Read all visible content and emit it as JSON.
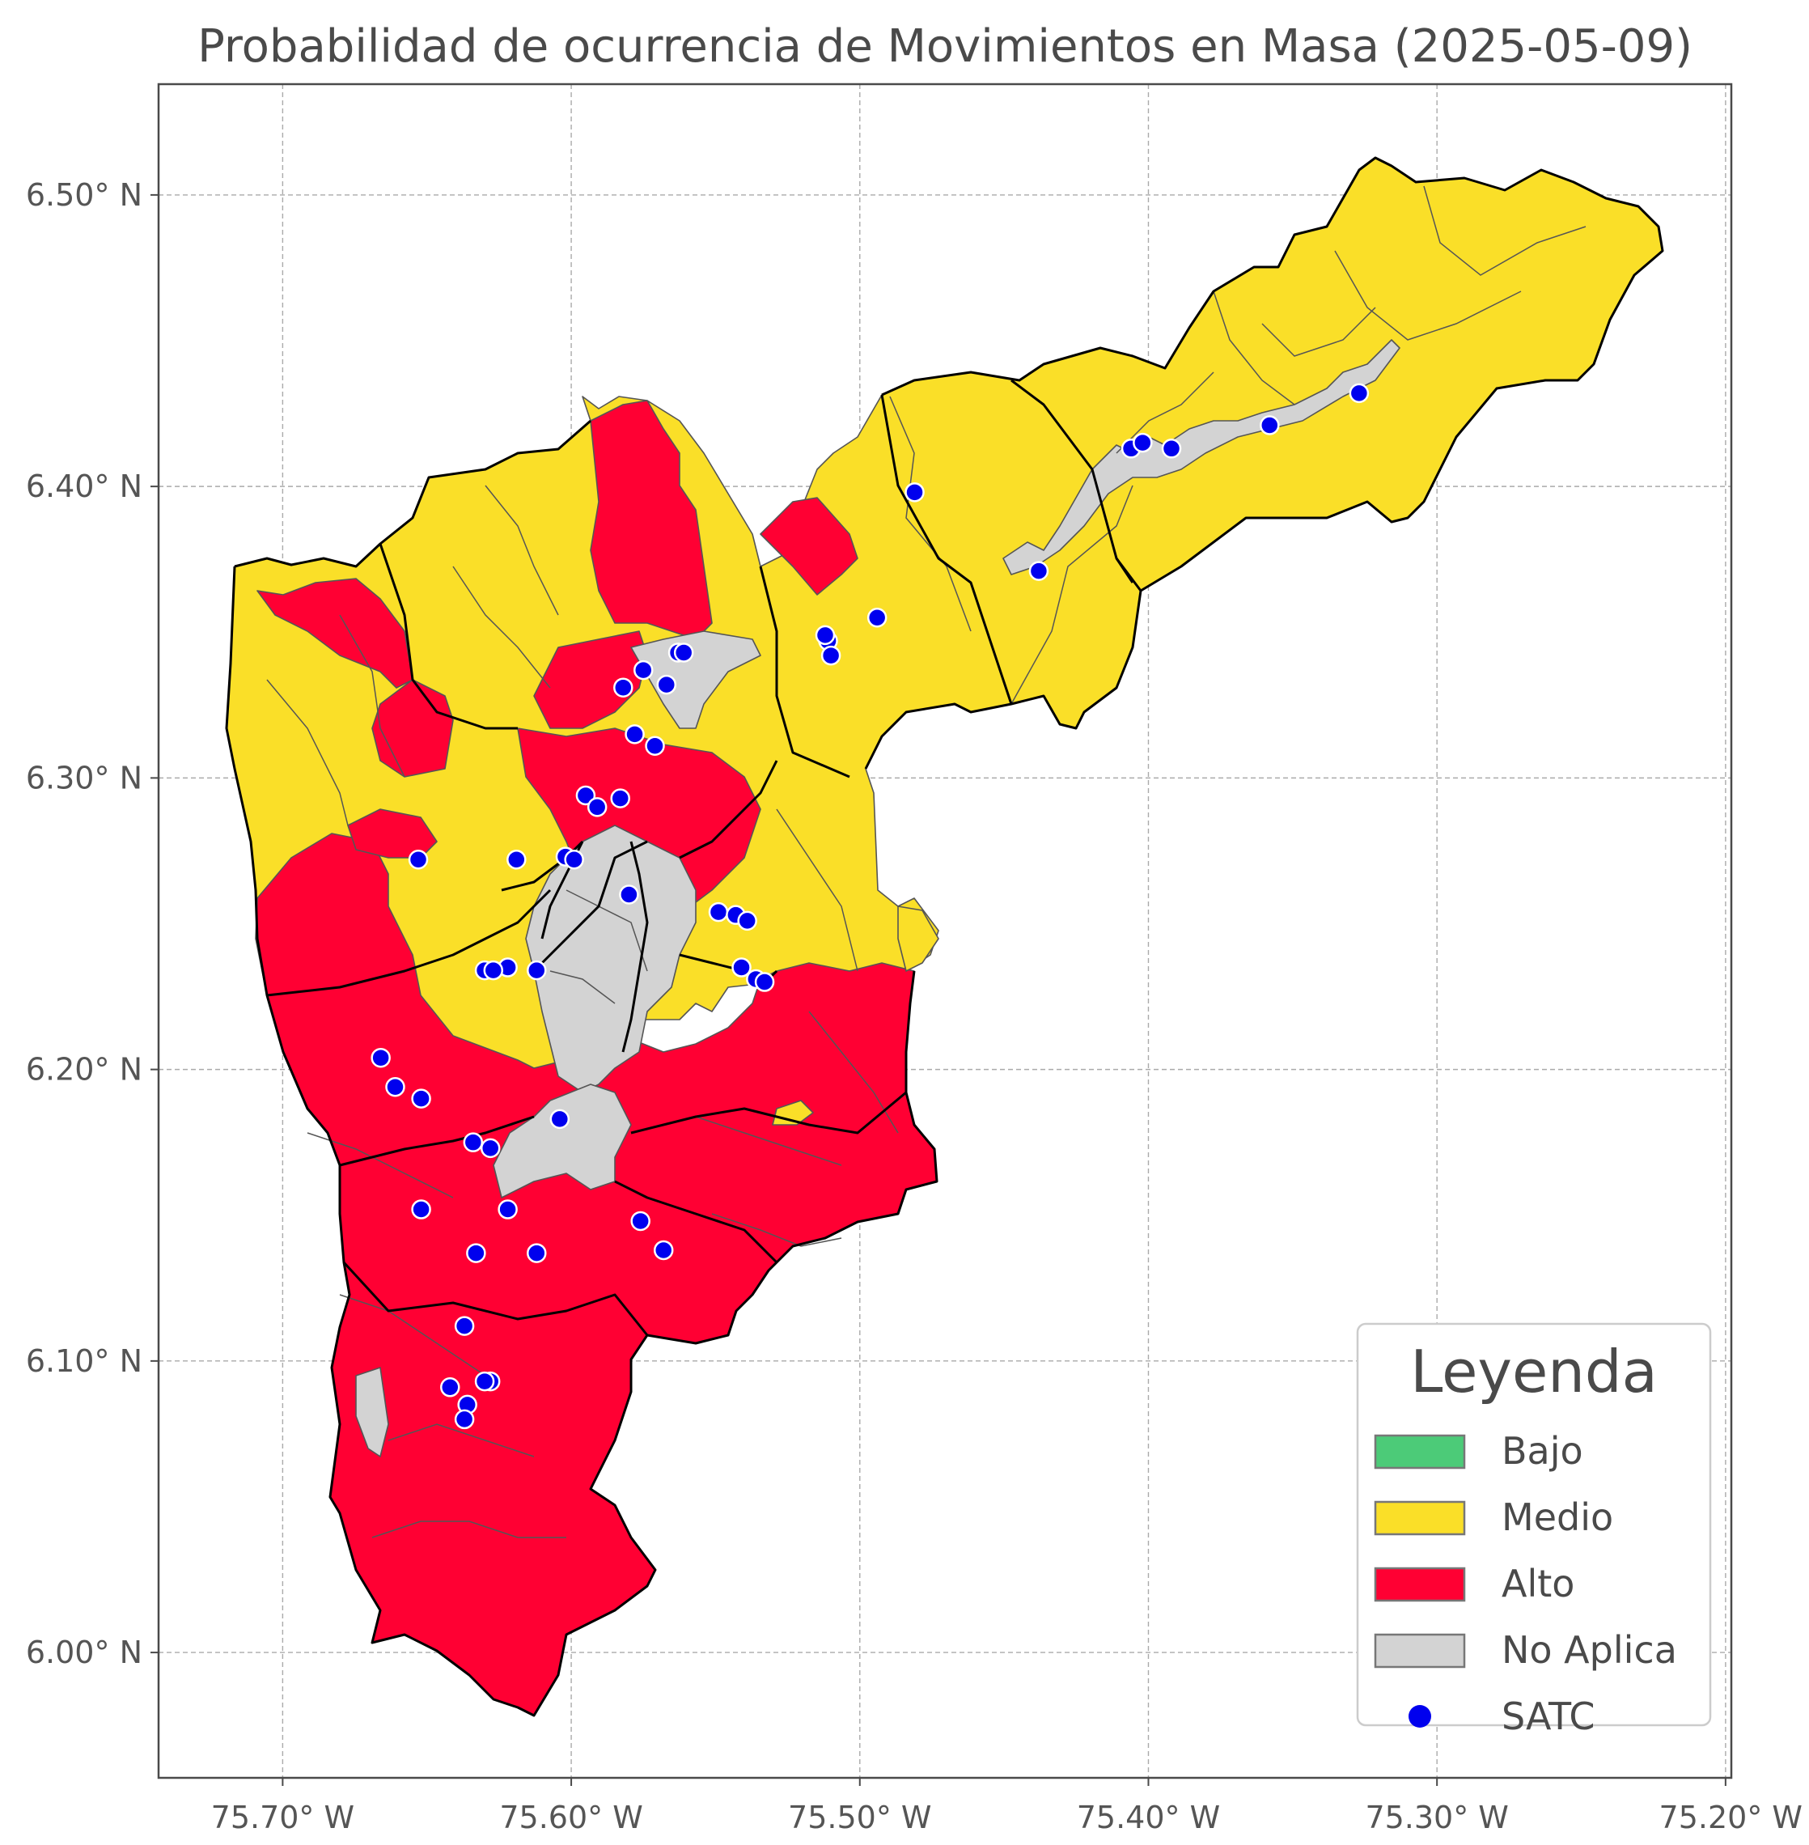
{
  "title": "Probabilidad de ocurrencia de Movimientos en Masa (2025-05-09)",
  "axes": {
    "x_ticks": [
      {
        "value": -75.7,
        "label": "75.70° W"
      },
      {
        "value": -75.6,
        "label": "75.60° W"
      },
      {
        "value": -75.5,
        "label": "75.50° W"
      },
      {
        "value": -75.4,
        "label": "75.40° W"
      },
      {
        "value": -75.3,
        "label": "75.30° W"
      },
      {
        "value": -75.2,
        "label": "75.20° W"
      }
    ],
    "y_ticks": [
      {
        "value": 6.0,
        "label": "6.00° N"
      },
      {
        "value": 6.1,
        "label": "6.10° N"
      },
      {
        "value": 6.2,
        "label": "6.20° N"
      },
      {
        "value": 6.3,
        "label": "6.30° N"
      },
      {
        "value": 6.4,
        "label": "6.40° N"
      },
      {
        "value": 6.5,
        "label": "6.50° N"
      }
    ],
    "xlim": [
      -75.743,
      -75.198
    ],
    "ylim": [
      5.957,
      6.538
    ],
    "grid": true
  },
  "legend": {
    "title": "Leyenda",
    "position": "bottom-right",
    "items": [
      {
        "label": "Bajo",
        "color": "#4ccb78",
        "kind": "patch"
      },
      {
        "label": "Medio",
        "color": "#fadf28",
        "kind": "patch"
      },
      {
        "label": "Alto",
        "color": "#ff0033",
        "kind": "patch"
      },
      {
        "label": "No Aplica",
        "color": "#d3d3d3",
        "kind": "patch"
      },
      {
        "label": "SATC",
        "color": "#0000ee",
        "kind": "marker"
      }
    ]
  },
  "colors": {
    "bajo": "#4ccb78",
    "medio": "#fadf28",
    "alto": "#ff0033",
    "no_aplica": "#d3d3d3",
    "satc": "#0000ee"
  },
  "chart_data": {
    "type": "map",
    "categories": [
      "Bajo",
      "Medio",
      "Alto",
      "No Aplica"
    ],
    "satc_stations": [
      [
        -75.481,
        6.398
      ],
      [
        -75.406,
        6.413
      ],
      [
        -75.402,
        6.415
      ],
      [
        -75.392,
        6.413
      ],
      [
        -75.358,
        6.421
      ],
      [
        -75.327,
        6.432
      ],
      [
        -75.438,
        6.371
      ],
      [
        -75.494,
        6.355
      ],
      [
        -75.511,
        6.347
      ],
      [
        -75.51,
        6.342
      ],
      [
        -75.512,
        6.349
      ],
      [
        -75.563,
        6.343
      ],
      [
        -75.561,
        6.343
      ],
      [
        -75.567,
        6.332
      ],
      [
        -75.575,
        6.337
      ],
      [
        -75.582,
        6.331
      ],
      [
        -75.578,
        6.315
      ],
      [
        -75.571,
        6.311
      ],
      [
        -75.595,
        6.294
      ],
      [
        -75.591,
        6.29
      ],
      [
        -75.583,
        6.293
      ],
      [
        -75.653,
        6.272
      ],
      [
        -75.619,
        6.272
      ],
      [
        -75.602,
        6.273
      ],
      [
        -75.599,
        6.272
      ],
      [
        -75.58,
        6.26
      ],
      [
        -75.549,
        6.254
      ],
      [
        -75.543,
        6.253
      ],
      [
        -75.539,
        6.251
      ],
      [
        -75.541,
        6.235
      ],
      [
        -75.536,
        6.231
      ],
      [
        -75.533,
        6.23
      ],
      [
        -75.622,
        6.235
      ],
      [
        -75.612,
        6.234
      ],
      [
        -75.63,
        6.234
      ],
      [
        -75.627,
        6.234
      ],
      [
        -75.666,
        6.204
      ],
      [
        -75.661,
        6.194
      ],
      [
        -75.652,
        6.19
      ],
      [
        -75.604,
        6.183
      ],
      [
        -75.634,
        6.175
      ],
      [
        -75.628,
        6.173
      ],
      [
        -75.652,
        6.152
      ],
      [
        -75.622,
        6.152
      ],
      [
        -75.576,
        6.148
      ],
      [
        -75.568,
        6.138
      ],
      [
        -75.633,
        6.137
      ],
      [
        -75.612,
        6.137
      ],
      [
        -75.637,
        6.112
      ],
      [
        -75.642,
        6.091
      ],
      [
        -75.628,
        6.093
      ],
      [
        -75.63,
        6.093
      ],
      [
        -75.636,
        6.085
      ],
      [
        -75.637,
        6.08
      ]
    ]
  }
}
